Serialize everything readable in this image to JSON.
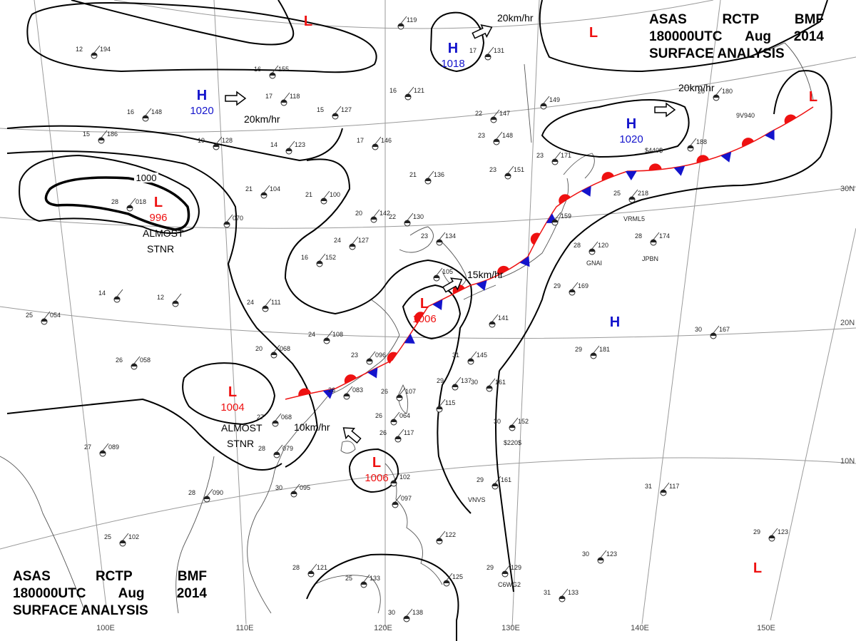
{
  "header": {
    "line1": [
      "ASAS",
      "RCTP",
      "BMF"
    ],
    "line2": [
      "180000UTC",
      "Aug",
      "2014"
    ],
    "line3": "SURFACE ANALYSIS"
  },
  "colors": {
    "isobar": "#000000",
    "high": "#1414cc",
    "low": "#ee1111",
    "warm_front": "#ee1111",
    "cold_front": "#1414cc",
    "grid": "#9a9a9a",
    "coast": "#555555"
  },
  "longitude_labels": [
    "100E",
    "110E",
    "120E",
    "130E",
    "140E",
    "150E"
  ],
  "latitude_labels": [
    "30N",
    "20N",
    "10N"
  ],
  "isobar_labels": [
    "1000"
  ],
  "pressure_centers": [
    {
      "type": "H",
      "value": "1020"
    },
    {
      "type": "H",
      "value": "1018"
    },
    {
      "type": "H",
      "value": "1020"
    },
    {
      "type": "H",
      "value": ""
    },
    {
      "type": "L",
      "value": ""
    },
    {
      "type": "L",
      "value": ""
    },
    {
      "type": "L",
      "value": "996"
    },
    {
      "type": "L",
      "value": "1004"
    },
    {
      "type": "L",
      "value": "1006"
    },
    {
      "type": "L",
      "value": "1006"
    },
    {
      "type": "L",
      "value": ""
    },
    {
      "type": "L",
      "value": ""
    }
  ],
  "annotations": [
    {
      "text": "20km/hr"
    },
    {
      "text": "20km/hr"
    },
    {
      "text": "20km/hr"
    },
    {
      "text": "15km/hr"
    },
    {
      "text": "10km/hr"
    },
    {
      "text": "ALMOST"
    },
    {
      "text": "STNR"
    },
    {
      "text": "ALMOST"
    },
    {
      "text": "STNR"
    }
  ],
  "station_reports": [
    {
      "temp": "12",
      "pres": "194"
    },
    {
      "temp": "16",
      "pres": "155"
    },
    {
      "temp": "17",
      "pres": "118"
    },
    {
      "temp": "15",
      "pres": "127"
    },
    {
      "temp": "16",
      "pres": "121"
    },
    {
      "temp": "",
      "pres": "119"
    },
    {
      "temp": "17",
      "pres": "131"
    },
    {
      "temp": "15",
      "pres": "186"
    },
    {
      "temp": "16",
      "pres": "148"
    },
    {
      "temp": "19",
      "pres": "128"
    },
    {
      "temp": "14",
      "pres": "123"
    },
    {
      "temp": "17",
      "pres": "146"
    },
    {
      "temp": "22",
      "pres": "147"
    },
    {
      "temp": "23",
      "pres": "148"
    },
    {
      "temp": "",
      "pres": "149"
    },
    {
      "temp": "21",
      "pres": "136"
    },
    {
      "temp": "21",
      "pres": "104"
    },
    {
      "temp": "21",
      "pres": "100"
    },
    {
      "temp": "20",
      "pres": "142"
    },
    {
      "temp": "22",
      "pres": "130"
    },
    {
      "temp": "23",
      "pres": "151"
    },
    {
      "temp": "23",
      "pres": "171"
    },
    {
      "temp": "28",
      "pres": "018"
    },
    {
      "temp": "",
      "pres": "070"
    },
    {
      "temp": "16",
      "pres": "152"
    },
    {
      "temp": "24",
      "pres": "127"
    },
    {
      "temp": "23",
      "pres": "134"
    },
    {
      "temp": "",
      "pres": "105"
    },
    {
      "temp": "14",
      "pres": ""
    },
    {
      "temp": "12",
      "pres": ""
    },
    {
      "temp": "24",
      "pres": "111"
    },
    {
      "temp": "25",
      "pres": "054"
    },
    {
      "temp": "24",
      "pres": "108"
    },
    {
      "temp": "26",
      "pres": "058"
    },
    {
      "temp": "20",
      "pres": "068"
    },
    {
      "temp": "23",
      "pres": "096"
    },
    {
      "temp": "26",
      "pres": "083"
    },
    {
      "temp": "27",
      "pres": "068"
    },
    {
      "temp": "28",
      "pres": "079"
    },
    {
      "temp": "26",
      "pres": "107"
    },
    {
      "temp": "26",
      "pres": "064"
    },
    {
      "temp": "26",
      "pres": "117"
    },
    {
      "temp": "",
      "pres": "115"
    },
    {
      "temp": "27",
      "pres": "089"
    },
    {
      "temp": "28",
      "pres": "090"
    },
    {
      "temp": "30",
      "pres": "095"
    },
    {
      "temp": "25",
      "pres": "102"
    },
    {
      "temp": "28",
      "pres": "121"
    },
    {
      "temp": "25",
      "pres": "133"
    },
    {
      "temp": "",
      "pres": "102"
    },
    {
      "temp": "",
      "pres": "097"
    },
    {
      "temp": "",
      "pres": "122"
    },
    {
      "temp": "",
      "pres": "125"
    },
    {
      "temp": "30",
      "pres": "138"
    },
    {
      "temp": "29",
      "pres": "137"
    },
    {
      "temp": "31",
      "pres": "145"
    },
    {
      "temp": "",
      "pres": "141"
    },
    {
      "temp": "30",
      "pres": "161"
    },
    {
      "temp": "30",
      "pres": "152"
    },
    {
      "temp": "29",
      "pres": "161"
    },
    {
      "temp": "29",
      "pres": "129"
    },
    {
      "temp": "31",
      "pres": "133"
    },
    {
      "temp": "30",
      "pres": "123"
    },
    {
      "temp": "28",
      "pres": "120"
    },
    {
      "temp": "28",
      "pres": "174"
    },
    {
      "temp": "29",
      "pres": "169"
    },
    {
      "temp": "",
      "pres": "159"
    },
    {
      "temp": "25",
      "pres": "218"
    },
    {
      "temp": "",
      "pres": "188"
    },
    {
      "temp": "20",
      "pres": "180"
    },
    {
      "temp": "29",
      "pres": "181"
    },
    {
      "temp": "30",
      "pres": "167"
    },
    {
      "temp": "31",
      "pres": "117"
    },
    {
      "temp": "29",
      "pres": "123"
    }
  ],
  "ship_ids": [
    "$440$",
    "$220$",
    "VRML5",
    "GNAI",
    "JPBN",
    "9V940",
    "VNVS",
    "C6WG2"
  ]
}
